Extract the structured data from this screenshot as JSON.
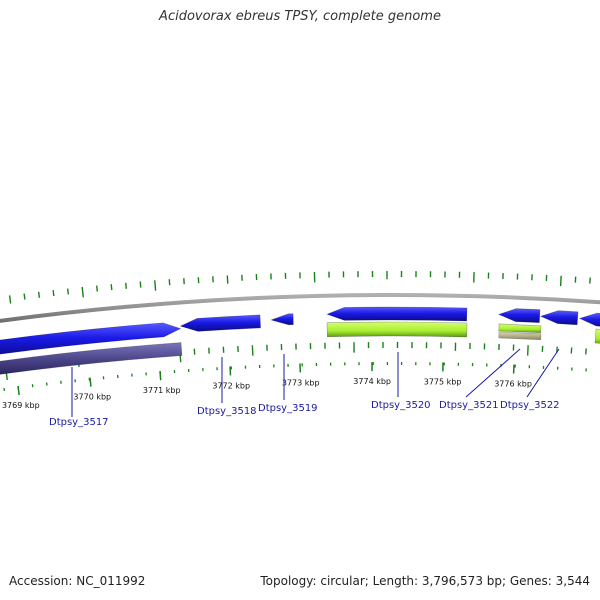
{
  "title": "Acidovorax ebreus TPSY, complete genome",
  "accession": "Accession: NC_011992",
  "summary": "Topology: circular; Length: 3,796,573 bp; Genes: 3,544",
  "colors": {
    "backbone": "#8c8c8c",
    "cds_forward": "#1a1ae6",
    "cds_reverse": "#4a4488",
    "rna_feature": "#a8ee30",
    "pseudo_feature": "#b8b488",
    "gc_skew": "#1a801a",
    "gene_label": "#1a1aa0"
  },
  "scale": {
    "unit": "kbp",
    "ticks": [
      {
        "label": "3769 kbp"
      },
      {
        "label": "3770 kbp"
      },
      {
        "label": "3771 kbp"
      },
      {
        "label": "3772 kbp"
      },
      {
        "label": "3773 kbp"
      },
      {
        "label": "3774 kbp"
      },
      {
        "label": "3775 kbp"
      },
      {
        "label": "3776 kbp"
      }
    ]
  },
  "genes": [
    {
      "label": "Dtpsy_3517"
    },
    {
      "label": "Dtpsy_3518"
    },
    {
      "label": "Dtpsy_3519"
    },
    {
      "label": "Dtpsy_3520"
    },
    {
      "label": "Dtpsy_3521"
    },
    {
      "label": "Dtpsy_3522"
    }
  ]
}
